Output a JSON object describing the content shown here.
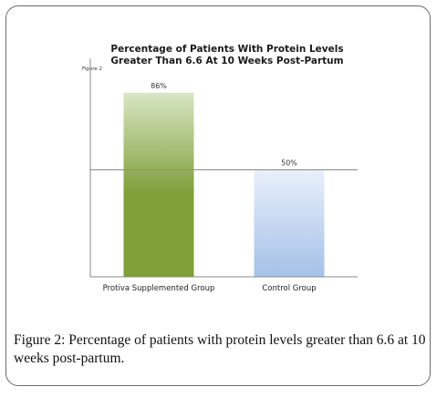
{
  "chart_data": {
    "type": "bar",
    "title": "Percentage of Patients With Protein Levels Greater Than 6.6 At 10 Weeks Post-Partum",
    "title_lines": [
      "Percentage of Patients With Protein Levels",
      "Greater Than 6.6 At 10 Weeks Post-Partum"
    ],
    "figure_label": "Figure 2",
    "categories": [
      "Protiva Supplemented Group",
      "Control Group"
    ],
    "values": [
      86,
      50
    ],
    "data_labels": [
      "86%",
      "50%"
    ],
    "reference_line": 50,
    "ylim": [
      0,
      100
    ],
    "grid": false,
    "colors": {
      "bar1_top": "#d8e6c4",
      "bar1_bottom": "#7f9f38",
      "bar2_top": "#e9f0fa",
      "bar2_bottom": "#a4c1e8",
      "axis": "#8a8a8a"
    }
  },
  "caption": {
    "label": "Figure 2:",
    "text": " Percentage of patients with protein levels greater than 6.6 at 10 weeks post-partum."
  }
}
